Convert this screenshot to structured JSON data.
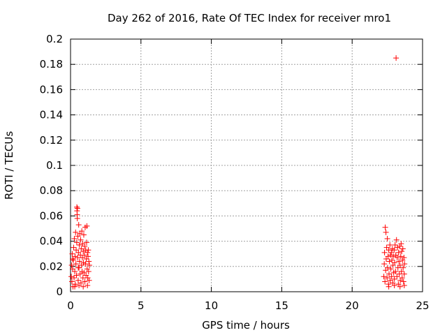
{
  "chart_data": {
    "type": "scatter",
    "title": "Day 262 of 2016, Rate Of TEC Index for receiver mro1",
    "xlabel": "GPS time / hours",
    "ylabel": "ROTI / TECUs",
    "xlim": [
      0,
      25
    ],
    "ylim": [
      0,
      0.2
    ],
    "xticks": [
      0,
      5,
      10,
      15,
      20,
      25
    ],
    "yticks": [
      0,
      0.02,
      0.04,
      0.06,
      0.08,
      0.1,
      0.12,
      0.14,
      0.16,
      0.18,
      0.2
    ],
    "grid": true,
    "marker": "+",
    "color": "#ff0000",
    "series": [
      {
        "name": "mro1",
        "points": [
          [
            0.05,
            0.012
          ],
          [
            0.08,
            0.021
          ],
          [
            0.1,
            0.008
          ],
          [
            0.12,
            0.03
          ],
          [
            0.15,
            0.018
          ],
          [
            0.17,
            0.004
          ],
          [
            0.2,
            0.025
          ],
          [
            0.22,
            0.035
          ],
          [
            0.25,
            0.011
          ],
          [
            0.27,
            0.042
          ],
          [
            0.3,
            0.016
          ],
          [
            0.32,
            0.028
          ],
          [
            0.34,
            0.006
          ],
          [
            0.36,
            0.047
          ],
          [
            0.38,
            0.022
          ],
          [
            0.4,
            0.033
          ],
          [
            0.42,
            0.013
          ],
          [
            0.44,
            0.039
          ],
          [
            0.45,
            0.067
          ],
          [
            0.46,
            0.064
          ],
          [
            0.47,
            0.061
          ],
          [
            0.48,
            0.058
          ],
          [
            0.49,
            0.066
          ],
          [
            0.5,
            0.027
          ],
          [
            0.52,
            0.044
          ],
          [
            0.54,
            0.009
          ],
          [
            0.56,
            0.031
          ],
          [
            0.58,
            0.053
          ],
          [
            0.6,
            0.019
          ],
          [
            0.62,
            0.037
          ],
          [
            0.64,
            0.024
          ],
          [
            0.66,
            0.046
          ],
          [
            0.68,
            0.014
          ],
          [
            0.7,
            0.029
          ],
          [
            0.72,
            0.041
          ],
          [
            0.74,
            0.007
          ],
          [
            0.76,
            0.034
          ],
          [
            0.78,
            0.021
          ],
          [
            0.8,
            0.048
          ],
          [
            0.82,
            0.016
          ],
          [
            0.84,
            0.027
          ],
          [
            0.86,
            0.038
          ],
          [
            0.88,
            0.011
          ],
          [
            0.9,
            0.032
          ],
          [
            0.92,
            0.023
          ],
          [
            0.94,
            0.045
          ],
          [
            0.96,
            0.015
          ],
          [
            0.98,
            0.029
          ],
          [
            1.0,
            0.036
          ],
          [
            1.02,
            0.008
          ],
          [
            1.04,
            0.051
          ],
          [
            1.06,
            0.022
          ],
          [
            1.08,
            0.033
          ],
          [
            1.1,
            0.013
          ],
          [
            1.12,
            0.026
          ],
          [
            1.14,
            0.039
          ],
          [
            1.16,
            0.052
          ],
          [
            1.18,
            0.018
          ],
          [
            1.2,
            0.031
          ],
          [
            1.22,
            0.011
          ],
          [
            1.24,
            0.028
          ],
          [
            1.26,
            0.033
          ],
          [
            1.28,
            0.016
          ],
          [
            1.3,
            0.024
          ],
          [
            1.32,
            0.009
          ],
          [
            1.34,
            0.021
          ],
          [
            0.3,
            0.004
          ],
          [
            0.6,
            0.005
          ],
          [
            0.9,
            0.004
          ],
          [
            1.2,
            0.005
          ],
          [
            0.15,
            0.026
          ],
          [
            0.55,
            0.019
          ],
          [
            22.25,
            0.012
          ],
          [
            22.28,
            0.022
          ],
          [
            22.3,
            0.031
          ],
          [
            22.33,
            0.008
          ],
          [
            22.35,
            0.051
          ],
          [
            22.38,
            0.017
          ],
          [
            22.4,
            0.047
          ],
          [
            22.42,
            0.026
          ],
          [
            22.45,
            0.035
          ],
          [
            22.48,
            0.011
          ],
          [
            22.5,
            0.042
          ],
          [
            22.52,
            0.019
          ],
          [
            22.55,
            0.028
          ],
          [
            22.58,
            0.006
          ],
          [
            22.6,
            0.033
          ],
          [
            22.62,
            0.014
          ],
          [
            22.65,
            0.024
          ],
          [
            22.68,
            0.037
          ],
          [
            22.7,
            0.009
          ],
          [
            22.72,
            0.029
          ],
          [
            22.75,
            0.018
          ],
          [
            22.78,
            0.031
          ],
          [
            22.8,
            0.012
          ],
          [
            22.82,
            0.025
          ],
          [
            22.85,
            0.034
          ],
          [
            22.88,
            0.007
          ],
          [
            22.9,
            0.021
          ],
          [
            22.92,
            0.028
          ],
          [
            22.95,
            0.015
          ],
          [
            22.98,
            0.033
          ],
          [
            23.0,
            0.01
          ],
          [
            23.02,
            0.023
          ],
          [
            23.05,
            0.037
          ],
          [
            23.08,
            0.016
          ],
          [
            23.1,
            0.029
          ],
          [
            23.12,
            0.185
          ],
          [
            23.15,
            0.041
          ],
          [
            23.18,
            0.012
          ],
          [
            23.2,
            0.027
          ],
          [
            23.22,
            0.035
          ],
          [
            23.25,
            0.019
          ],
          [
            23.28,
            0.006
          ],
          [
            23.3,
            0.031
          ],
          [
            23.32,
            0.024
          ],
          [
            23.35,
            0.014
          ],
          [
            23.38,
            0.036
          ],
          [
            23.4,
            0.021
          ],
          [
            23.42,
            0.009
          ],
          [
            23.45,
            0.028
          ],
          [
            23.48,
            0.038
          ],
          [
            23.5,
            0.016
          ],
          [
            23.52,
            0.032
          ],
          [
            23.55,
            0.011
          ],
          [
            23.58,
            0.025
          ],
          [
            23.6,
            0.034
          ],
          [
            23.62,
            0.019
          ],
          [
            23.65,
            0.008
          ],
          [
            23.68,
            0.027
          ],
          [
            23.7,
            0.014
          ],
          [
            23.72,
            0.022
          ],
          [
            22.6,
            0.004
          ],
          [
            23.0,
            0.005
          ],
          [
            23.4,
            0.004
          ],
          [
            23.7,
            0.005
          ]
        ]
      }
    ]
  }
}
